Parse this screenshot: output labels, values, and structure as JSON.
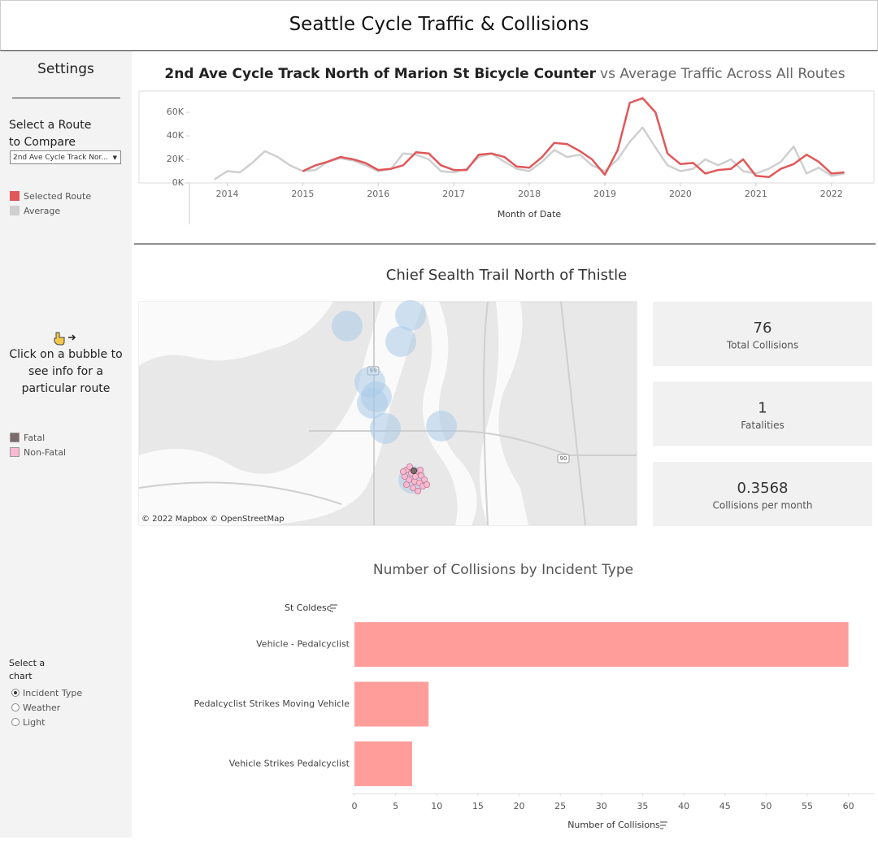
{
  "header": {
    "title": "Seattle Cycle Traffic & Collisions"
  },
  "sidebar": {
    "title": "Settings",
    "route_label": "Select a Route to Compare",
    "route_dropdown": "2nd Ave Cycle Track Nor...",
    "map_hint": "Click on a bubble to see info for a particular route",
    "map_legend": [
      {
        "name": "Fatal",
        "color": "#7b6b6b"
      },
      {
        "name": "Non-Fatal",
        "color": "#f7bad0"
      }
    ],
    "chart_selector": {
      "label": "Select a chart",
      "options": [
        "Incident Type",
        "Weather",
        "Light"
      ],
      "selected": "Incident Type"
    }
  },
  "chart_data": [
    {
      "type": "line",
      "title": [
        {
          "text": "2nd Ave Cycle Track North of Marion St Bicycle Counter",
          "bold": true
        },
        {
          "text": "vs Average Traffic Across All Routes",
          "bold": false
        }
      ],
      "x_label": "Month of Date",
      "x": [
        2013.83,
        2014,
        2014.17,
        2014.33,
        2014.5,
        2014.67,
        2014.83,
        2015,
        2015.17,
        2015.33,
        2015.5,
        2015.67,
        2015.83,
        2016,
        2016.17,
        2016.33,
        2016.5,
        2016.67,
        2016.83,
        2017,
        2017.17,
        2017.33,
        2017.5,
        2017.67,
        2017.83,
        2018,
        2018.17,
        2018.33,
        2018.5,
        2018.67,
        2018.83,
        2019,
        2019.17,
        2019.33,
        2019.5,
        2019.67,
        2019.83,
        2020,
        2020.17,
        2020.33,
        2020.5,
        2020.67,
        2020.83,
        2021,
        2021.17,
        2021.33,
        2021.5,
        2021.67,
        2021.83,
        2022,
        2022.17
      ],
      "series": [
        {
          "name": "Average",
          "color": "#cfcfcf",
          "values": [
            3000,
            10000,
            9000,
            17000,
            27000,
            22000,
            15000,
            10000,
            11000,
            18000,
            21000,
            19000,
            15000,
            10000,
            12000,
            25000,
            24000,
            20000,
            10000,
            9000,
            12000,
            22000,
            25000,
            18000,
            12000,
            10000,
            18000,
            28000,
            22000,
            24000,
            15000,
            10000,
            20000,
            35000,
            47000,
            30000,
            15000,
            10000,
            12000,
            20000,
            15000,
            20000,
            10000,
            8000,
            12000,
            18000,
            31000,
            8000,
            13000,
            6000,
            8000
          ]
        },
        {
          "name": "Selected Route",
          "color": "#e15759",
          "values": [
            null,
            null,
            null,
            null,
            null,
            null,
            null,
            10000,
            15000,
            18000,
            22000,
            20000,
            17000,
            11000,
            12000,
            15000,
            26000,
            25000,
            15000,
            11000,
            11000,
            24000,
            25000,
            22000,
            14000,
            13000,
            22000,
            34000,
            33000,
            27000,
            20000,
            7000,
            28000,
            68000,
            72000,
            60000,
            25000,
            16000,
            17000,
            8000,
            11000,
            12000,
            20000,
            6000,
            5000,
            12000,
            16000,
            24000,
            18000,
            8000,
            9000
          ]
        }
      ],
      "legend_order": [
        1,
        0
      ],
      "xlim": [
        2013.5,
        2022.25
      ],
      "xticks": [
        2014,
        2015,
        2016,
        2017,
        2018,
        2019,
        2020,
        2021,
        2022
      ],
      "ylim": [
        0,
        78000
      ],
      "yticks": [
        {
          "value": 0,
          "label": "0K"
        },
        {
          "value": 20000,
          "label": "20K"
        },
        {
          "value": 40000,
          "label": "40K"
        },
        {
          "value": 60000,
          "label": "60K"
        }
      ],
      "grid": false
    },
    {
      "type": "bar",
      "orientation": "horizontal",
      "title": "Number of Collisions by Incident Type",
      "y_label": "St Coldesc",
      "x_label": "Number of Collisions",
      "categories": [
        "Vehicle - Pedalcyclist",
        "Pedalcyclist Strikes Moving Vehicle",
        "Vehicle Strikes Pedalcyclist"
      ],
      "values": [
        60,
        9,
        7
      ],
      "color": "#ff9d9a",
      "xlim": [
        0,
        63
      ],
      "xticks": [
        0,
        5,
        10,
        15,
        20,
        25,
        30,
        35,
        40,
        45,
        50,
        55,
        60
      ],
      "grid": false
    }
  ],
  "route_panel": {
    "title": "Chief Sealth Trail North of Thistle",
    "map": {
      "attribution": "© 2022 Mapbox © OpenStreetMap",
      "road_labels": [
        "99",
        "90"
      ]
    },
    "kpis": [
      {
        "value": 76,
        "label": "Total Collisions"
      },
      {
        "value": 1,
        "label": "Fatalities"
      },
      {
        "value": 0.3568,
        "label": "Collisions per month"
      }
    ]
  }
}
